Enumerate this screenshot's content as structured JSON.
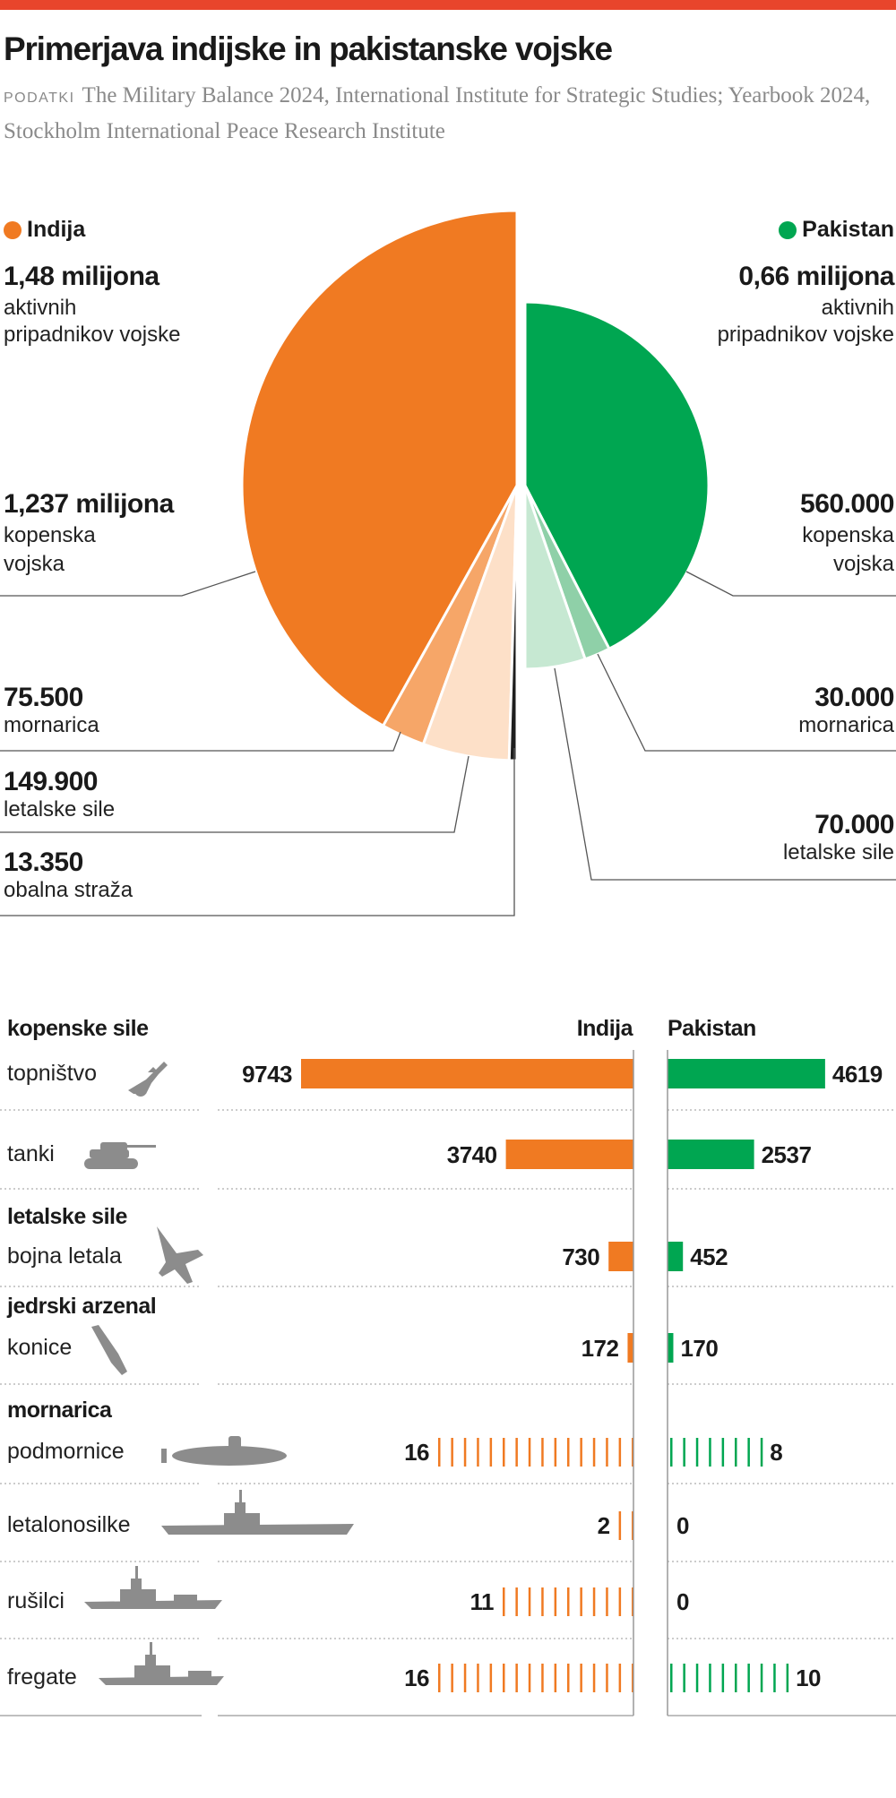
{
  "header": {
    "title": "Primerjava indijske in pakistanske vojske",
    "source_label": "PODATKI",
    "source_text": "The Military Balance 2024, International Institute for Strategic Studies; Yearbook 2024, Stockholm International Peace Research Institute"
  },
  "colors": {
    "topbar": "#e8452c",
    "india": "#f07a22",
    "pakistan": "#00a651",
    "icon": "#8c8c8c"
  },
  "chart_data": [
    {
      "type": "pie",
      "subtype": "semi-circle comparison (area proportional to total)",
      "legend": [
        {
          "name": "Indija",
          "color": "#f07a22"
        },
        {
          "name": "Pakistan",
          "color": "#00a651"
        }
      ],
      "india": {
        "total_label": "1,48 milijona",
        "total_desc_1": "aktivnih",
        "total_desc_2": "pripadnikov vojske",
        "total": 1480000,
        "slices": [
          {
            "value": 1237000,
            "label": "1,237 milijona",
            "desc_1": "kopenska",
            "desc_2": "vojska",
            "color": "#f07a22"
          },
          {
            "value": 75500,
            "label": "75.500",
            "desc_1": "mornarica",
            "color": "#f6a668"
          },
          {
            "value": 149900,
            "label": "149.900",
            "desc_1": "letalske sile",
            "color": "#fde0c8"
          },
          {
            "value": 13350,
            "label": "13.350",
            "desc_1": "obalna straža",
            "color": "#1e1e1e"
          }
        ]
      },
      "pakistan": {
        "total_label": "0,66 milijona",
        "total_desc_1": "aktivnih",
        "total_desc_2": "pripadnikov vojske",
        "total": 660000,
        "slices": [
          {
            "value": 560000,
            "label": "560.000",
            "desc_1": "kopenska",
            "desc_2": "vojska",
            "color": "#00a651"
          },
          {
            "value": 30000,
            "label": "30.000",
            "desc_1": "mornarica",
            "color": "#8fd0a8"
          },
          {
            "value": 70000,
            "label": "70.000",
            "desc_1": "letalske sile",
            "color": "#c6e8d2"
          }
        ]
      }
    },
    {
      "type": "bar",
      "subtype": "back-to-back horizontal bars / tick counts",
      "col_india": "Indija",
      "col_pakistan": "Pakistan",
      "groups": [
        {
          "title": "kopenske sile",
          "items": [
            {
              "label": "topništvo",
              "icon": "artillery-icon",
              "india": 9743,
              "pakistan": 4619,
              "style": "bar"
            },
            {
              "label": "tanki",
              "icon": "tank-icon",
              "india": 3740,
              "pakistan": 2537,
              "style": "bar"
            }
          ]
        },
        {
          "title": "letalske sile",
          "items": [
            {
              "label": "bojna letala",
              "icon": "fighter-jet-icon",
              "india": 730,
              "pakistan": 452,
              "style": "bar"
            }
          ]
        },
        {
          "title": "jedrski arzenal",
          "items": [
            {
              "label": "konice",
              "icon": "warhead-icon",
              "india": 172,
              "pakistan": 170,
              "style": "bar"
            }
          ]
        },
        {
          "title": "mornarica",
          "items": [
            {
              "label": "podmornice",
              "icon": "submarine-icon",
              "india": 16,
              "pakistan": 8,
              "style": "ticks"
            },
            {
              "label": "letalonosilke",
              "icon": "aircraft-carrier-icon",
              "india": 2,
              "pakistan": 0,
              "style": "ticks"
            },
            {
              "label": "rušilci",
              "icon": "destroyer-icon",
              "india": 11,
              "pakistan": 0,
              "style": "ticks"
            },
            {
              "label": "fregate",
              "icon": "frigate-icon",
              "india": 16,
              "pakistan": 10,
              "style": "ticks"
            }
          ]
        }
      ]
    }
  ]
}
